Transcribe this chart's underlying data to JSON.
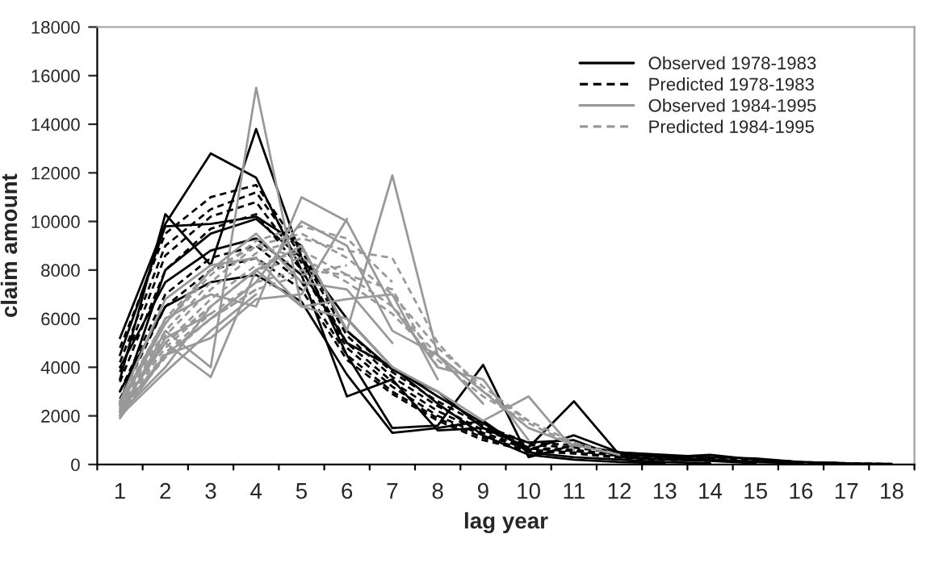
{
  "chart_data": {
    "type": "line",
    "categories": [
      "1",
      "2",
      "3",
      "4",
      "5",
      "6",
      "7",
      "8",
      "9",
      "10",
      "11",
      "12",
      "13",
      "14",
      "15",
      "16",
      "17",
      "18"
    ],
    "xlabel": "lag year",
    "ylabel": "claim amount",
    "ylim": [
      0,
      18000
    ],
    "yticks": [
      0,
      2000,
      4000,
      6000,
      8000,
      10000,
      12000,
      14000,
      16000,
      18000
    ],
    "grid": false,
    "legend": "top right",
    "marker": "none",
    "series": [
      {
        "name": "Observed 1978-1983",
        "color": "#000000",
        "line_style": "solid",
        "values": [
          5200,
          9900,
          12800,
          11800,
          8000,
          5000,
          4000,
          2800,
          1700,
          600,
          1200,
          500,
          300,
          400,
          200,
          100,
          50,
          20
        ]
      },
      {
        "color": "#000000",
        "line_style": "solid",
        "values": [
          3500,
          10300,
          8200,
          13800,
          8500,
          4500,
          1500,
          1600,
          4100,
          300,
          800,
          500,
          400,
          300,
          250,
          100,
          50,
          null
        ]
      },
      {
        "color": "#000000",
        "line_style": "solid",
        "values": [
          4500,
          9800,
          9900,
          10200,
          9000,
          5500,
          3900,
          3000,
          1500,
          700,
          2600,
          400,
          300,
          200,
          100,
          50,
          null,
          null
        ]
      },
      {
        "color": "#000000",
        "line_style": "solid",
        "values": [
          4000,
          7500,
          8800,
          9300,
          7800,
          2800,
          3500,
          1400,
          1500,
          900,
          1000,
          300,
          200,
          150,
          50,
          null,
          null,
          null
        ]
      },
      {
        "color": "#000000",
        "line_style": "solid",
        "values": [
          3000,
          6500,
          7500,
          7800,
          6700,
          3700,
          1300,
          1500,
          1800,
          500,
          300,
          200,
          100,
          50,
          null,
          null,
          null,
          null
        ]
      },
      {
        "color": "#000000",
        "line_style": "solid",
        "values": [
          2500,
          8000,
          9500,
          10100,
          8500,
          6000,
          4000,
          2500,
          1200,
          400,
          200,
          100,
          50,
          null,
          null,
          null,
          null,
          null
        ]
      },
      {
        "name": "Predicted 1978-1983",
        "color": "#000000",
        "line_style": "dashed",
        "values": [
          4800,
          9500,
          11000,
          11500,
          8800,
          5500,
          3800,
          2600,
          1600,
          900,
          800,
          500,
          350,
          300,
          200,
          100,
          50,
          20
        ]
      },
      {
        "color": "#000000",
        "line_style": "dashed",
        "values": [
          4200,
          9000,
          10500,
          11200,
          8600,
          5300,
          3600,
          2400,
          1400,
          800,
          700,
          450,
          300,
          250,
          150,
          80,
          40,
          null
        ]
      },
      {
        "color": "#000000",
        "line_style": "dashed",
        "values": [
          3800,
          8600,
          10200,
          10800,
          8300,
          5000,
          3400,
          2200,
          1300,
          700,
          600,
          400,
          280,
          200,
          120,
          60,
          null,
          null
        ]
      },
      {
        "color": "#000000",
        "line_style": "dashed",
        "values": [
          3400,
          8000,
          9700,
          10300,
          8000,
          4800,
          3200,
          2000,
          1200,
          650,
          550,
          350,
          250,
          180,
          100,
          null,
          null,
          null
        ]
      },
      {
        "color": "#000000",
        "line_style": "dashed",
        "values": [
          3000,
          7000,
          8500,
          9000,
          7500,
          4500,
          3000,
          1900,
          1100,
          600,
          500,
          300,
          200,
          150,
          null,
          null,
          null,
          null
        ]
      },
      {
        "color": "#000000",
        "line_style": "dashed",
        "values": [
          2700,
          6500,
          8000,
          8500,
          7200,
          4300,
          2900,
          1800,
          1000,
          550,
          450,
          280,
          180,
          null,
          null,
          null,
          null,
          null
        ]
      },
      {
        "name": "Observed 1984-1995",
        "color": "#999999",
        "line_style": "solid",
        "values": [
          2200,
          4500,
          6000,
          7500,
          10000,
          9000,
          5500,
          4500,
          3000,
          1500,
          800,
          400,
          null,
          null,
          null,
          null,
          null,
          null
        ]
      },
      {
        "color": "#999999",
        "line_style": "solid",
        "values": [
          2000,
          5500,
          4000,
          15500,
          6500,
          6000,
          4000,
          3000,
          1800,
          2800,
          600,
          null,
          null,
          null,
          null,
          null,
          null,
          null
        ]
      },
      {
        "color": "#999999",
        "line_style": "solid",
        "values": [
          2500,
          6000,
          7000,
          6500,
          11000,
          10000,
          6500,
          4000,
          3500,
          1000,
          null,
          null,
          null,
          null,
          null,
          null,
          null,
          null
        ]
      },
      {
        "color": "#999999",
        "line_style": "solid",
        "values": [
          2300,
          5000,
          3600,
          8000,
          9000,
          5500,
          11900,
          4500,
          2500,
          null,
          null,
          null,
          null,
          null,
          null,
          null,
          null,
          null
        ]
      },
      {
        "color": "#999999",
        "line_style": "solid",
        "values": [
          2100,
          4000,
          6500,
          8000,
          6500,
          6800,
          7000,
          3500,
          null,
          null,
          null,
          null,
          null,
          null,
          null,
          null,
          null,
          null
        ]
      },
      {
        "color": "#999999",
        "line_style": "solid",
        "values": [
          2400,
          5800,
          8000,
          9500,
          7500,
          7200,
          5000,
          null,
          null,
          null,
          null,
          null,
          null,
          null,
          null,
          null,
          null,
          null
        ]
      },
      {
        "color": "#999999",
        "line_style": "solid",
        "values": [
          1900,
          4500,
          5200,
          6800,
          7000,
          10100,
          null,
          null,
          null,
          null,
          null,
          null,
          null,
          null,
          null,
          null,
          null,
          null
        ]
      },
      {
        "color": "#999999",
        "line_style": "solid",
        "values": [
          2600,
          6800,
          8200,
          8500,
          6500,
          null,
          null,
          null,
          null,
          null,
          null,
          null,
          null,
          null,
          null,
          null,
          null,
          null
        ]
      },
      {
        "color": "#999999",
        "line_style": "solid",
        "values": [
          2000,
          3800,
          5500,
          7000,
          null,
          null,
          null,
          null,
          null,
          null,
          null,
          null,
          null,
          null,
          null,
          null,
          null,
          null
        ]
      },
      {
        "color": "#999999",
        "line_style": "solid",
        "values": [
          2200,
          5200,
          6200,
          null,
          null,
          null,
          null,
          null,
          null,
          null,
          null,
          null,
          null,
          null,
          null,
          null,
          null,
          null
        ]
      },
      {
        "name": "Predicted 1984-1995",
        "color": "#999999",
        "line_style": "dashed",
        "values": [
          2300,
          5000,
          6800,
          8200,
          8800,
          7800,
          6500,
          4500,
          3000,
          1800,
          900,
          400,
          null,
          null,
          null,
          null,
          null,
          null
        ]
      },
      {
        "color": "#999999",
        "line_style": "dashed",
        "values": [
          2200,
          4800,
          6500,
          8000,
          8500,
          7500,
          6200,
          4300,
          2800,
          1700,
          800,
          null,
          null,
          null,
          null,
          null,
          null,
          null
        ]
      },
      {
        "color": "#999999",
        "line_style": "dashed",
        "values": [
          2500,
          5500,
          7500,
          9000,
          9500,
          8500,
          7000,
          4800,
          3200,
          1800,
          null,
          null,
          null,
          null,
          null,
          null,
          null,
          null
        ]
      },
      {
        "color": "#999999",
        "line_style": "dashed",
        "values": [
          2400,
          5300,
          7200,
          8700,
          9300,
          8800,
          8500,
          5000,
          3000,
          null,
          null,
          null,
          null,
          null,
          null,
          null,
          null,
          null
        ]
      },
      {
        "color": "#999999",
        "line_style": "dashed",
        "values": [
          2100,
          4600,
          6200,
          7500,
          8000,
          7800,
          7200,
          4000,
          null,
          null,
          null,
          null,
          null,
          null,
          null,
          null,
          null,
          null
        ]
      },
      {
        "color": "#999999",
        "line_style": "dashed",
        "values": [
          2500,
          5800,
          7800,
          9200,
          9800,
          9300,
          7500,
          null,
          null,
          null,
          null,
          null,
          null,
          null,
          null,
          null,
          null,
          null
        ]
      },
      {
        "color": "#999999",
        "line_style": "dashed",
        "values": [
          2000,
          4500,
          6000,
          7200,
          7800,
          8200,
          null,
          null,
          null,
          null,
          null,
          null,
          null,
          null,
          null,
          null,
          null,
          null
        ]
      },
      {
        "color": "#999999",
        "line_style": "dashed",
        "values": [
          2600,
          6000,
          8000,
          9000,
          8500,
          null,
          null,
          null,
          null,
          null,
          null,
          null,
          null,
          null,
          null,
          null,
          null,
          null
        ]
      },
      {
        "color": "#999999",
        "line_style": "dashed",
        "values": [
          2100,
          4400,
          6000,
          7200,
          null,
          null,
          null,
          null,
          null,
          null,
          null,
          null,
          null,
          null,
          null,
          null,
          null,
          null
        ]
      },
      {
        "color": "#999999",
        "line_style": "dashed",
        "values": [
          2300,
          5000,
          6500,
          null,
          null,
          null,
          null,
          null,
          null,
          null,
          null,
          null,
          null,
          null,
          null,
          null,
          null,
          null
        ]
      }
    ]
  }
}
